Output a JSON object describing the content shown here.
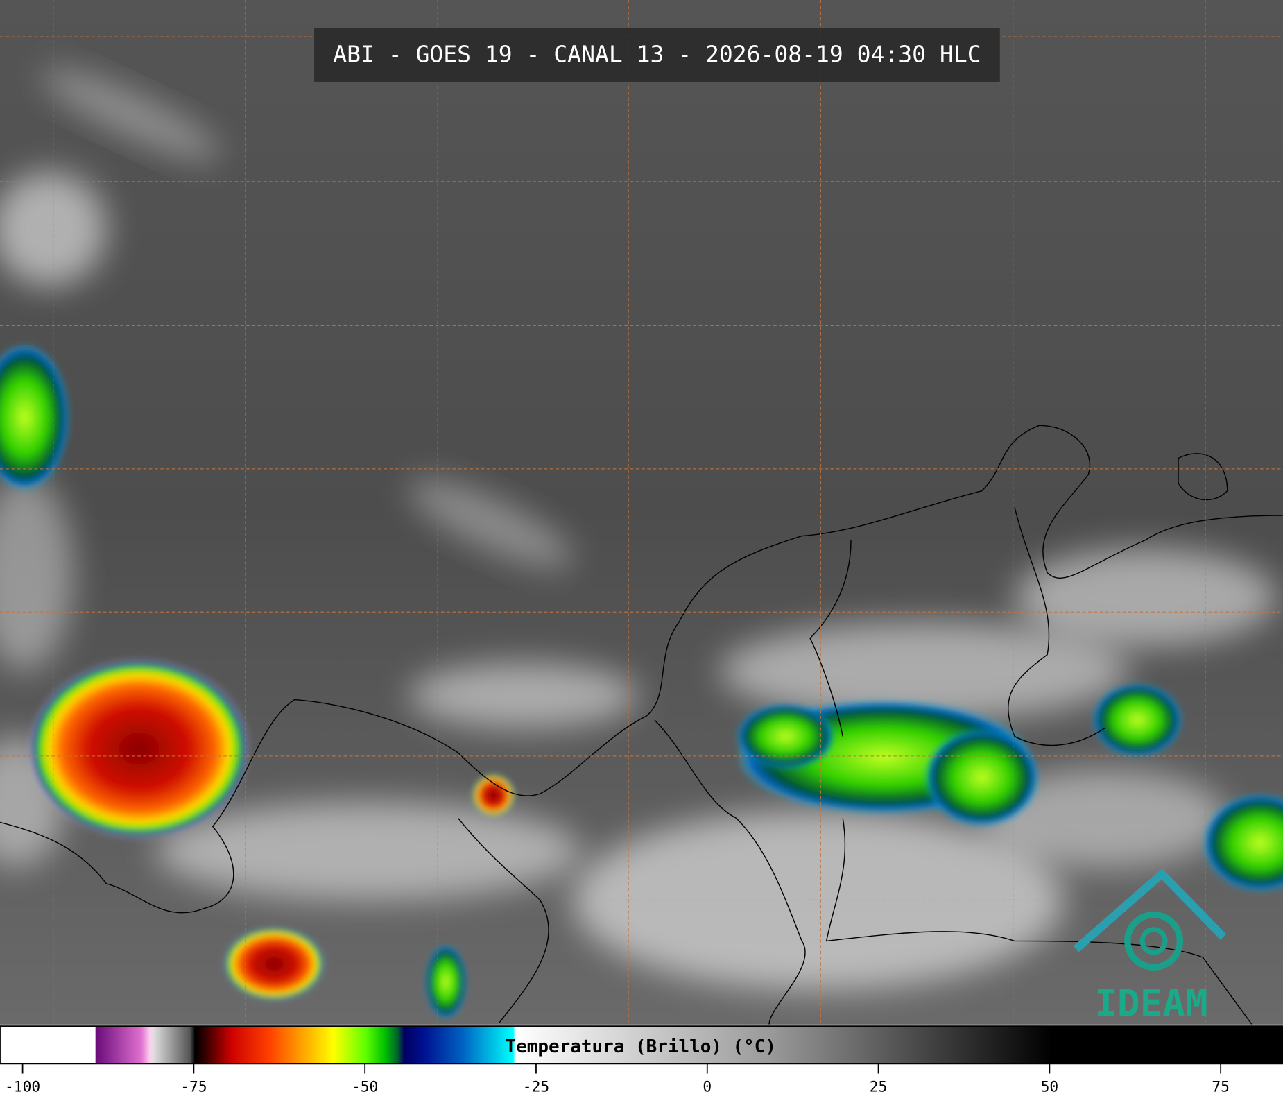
{
  "title": "ABI - GOES 19 - CANAL 13 - 2026-08-19 04:30 HLC",
  "logo": "IDEAM",
  "colorbar": {
    "label": "Temperatura (Brillo) (°C)",
    "lim": [
      -103.3,
      84.1
    ],
    "ticks": [
      -100,
      -75,
      -50,
      -25,
      0,
      25,
      50,
      75
    ]
  }
}
